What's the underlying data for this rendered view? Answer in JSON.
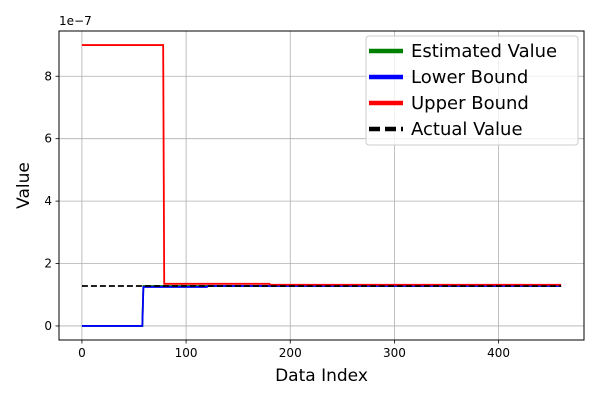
{
  "chart_data": {
    "type": "line",
    "title": "",
    "xlabel": "Data Index",
    "ylabel": "Value",
    "y_offset_label": "1e−7",
    "xlim": [
      -22,
      482
    ],
    "ylim": [
      -4.5e-08,
      9.45e-07
    ],
    "xticks": [
      0,
      100,
      200,
      300,
      400
    ],
    "xtick_labels": [
      "0",
      "100",
      "200",
      "300",
      "400"
    ],
    "yticks": [
      0,
      2e-07,
      4e-07,
      6e-07,
      8e-07
    ],
    "ytick_labels": [
      "0",
      "2",
      "4",
      "6",
      "8"
    ],
    "grid": true,
    "legend_position": "top-right",
    "series": [
      {
        "name": "Estimated Value",
        "color": "#008000",
        "style": "solid",
        "x": [
          0,
          58,
          59,
          460
        ],
        "y": [
          0,
          0,
          1.28e-07,
          1.28e-07
        ]
      },
      {
        "name": "Lower Bound",
        "color": "#0000ff",
        "style": "solid",
        "x": [
          0,
          58,
          59,
          120,
          121,
          460
        ],
        "y": [
          0,
          0,
          1.25e-07,
          1.25e-07,
          1.28e-07,
          1.28e-07
        ]
      },
      {
        "name": "Upper Bound",
        "color": "#ff0000",
        "style": "solid",
        "x": [
          0,
          78,
          79,
          180,
          181,
          460
        ],
        "y": [
          9e-07,
          9e-07,
          1.35e-07,
          1.35e-07,
          1.32e-07,
          1.32e-07
        ]
      },
      {
        "name": "Actual Value",
        "color": "#000000",
        "style": "dashed",
        "x": [
          0,
          460
        ],
        "y": [
          1.28e-07,
          1.28e-07
        ]
      }
    ]
  }
}
